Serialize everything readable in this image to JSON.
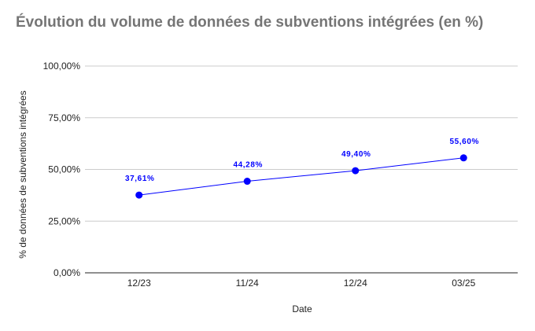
{
  "chart_data": {
    "type": "line",
    "title": "Évolution du volume de données de subventions intégrées (en %)",
    "xlabel": "Date",
    "ylabel": "% de données de subventions intégrées",
    "categories": [
      "12/23",
      "11/24",
      "12/24",
      "03/25"
    ],
    "series": [
      {
        "values": [
          37.61,
          44.28,
          49.4,
          55.6
        ],
        "labels": [
          "37,61%",
          "44,28%",
          "49,40%",
          "55,60%"
        ],
        "color": "#0000ff"
      }
    ],
    "ylim": [
      0,
      100
    ],
    "yticks": [
      0,
      25,
      50,
      75,
      100
    ],
    "ytick_labels": [
      "0,00%",
      "25,00%",
      "50,00%",
      "75,00%",
      "100,00%"
    ],
    "grid": true,
    "legend": "none",
    "colors": {
      "title": "#757575",
      "grid": "#cccccc",
      "axis": "#222222"
    }
  }
}
